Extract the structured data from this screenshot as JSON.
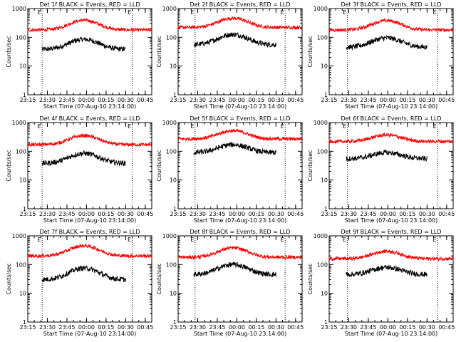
{
  "chart_data": [
    {
      "type": "line",
      "title": "Det 1f BLACK = Events, RED = LLD",
      "xlabel": "Start Time (07-Aug-10 23:14:00)",
      "ylabel": "Counts/sec",
      "y_scale": "log",
      "ylim": [
        1,
        1000
      ],
      "xlim": [
        "23:15",
        "00:50"
      ],
      "x_ticks": [
        "23:15",
        "23:30",
        "23:45",
        "00:00",
        "00:15",
        "00:30",
        "00:45"
      ],
      "y_ticks": [
        "1",
        "10",
        "100",
        "1000"
      ],
      "markers": [
        {
          "label": "E",
          "x": "23:26"
        },
        {
          "label": "E",
          "x": "00:35"
        }
      ],
      "series": [
        {
          "name": "Events",
          "color": "#000000",
          "x_start": "23:26",
          "x_end": "00:30",
          "base": 38,
          "peak": 85,
          "peak_x": "23:58",
          "width_min": 14
        },
        {
          "name": "LLD",
          "color": "#ff0000",
          "x_start": "23:15",
          "x_end": "00:50",
          "base": 180,
          "peak": 390,
          "peak_x": "23:58",
          "width_min": 14
        }
      ]
    },
    {
      "type": "line",
      "title": "Det 2f BLACK = Events, RED = LLD",
      "xlabel": "Start Time (07-Aug-10 23:14:00)",
      "ylabel": "Counts/sec",
      "y_scale": "log",
      "ylim": [
        1,
        1000
      ],
      "xlim": [
        "23:15",
        "00:50"
      ],
      "x_ticks": [
        "23:15",
        "23:30",
        "23:45",
        "00:00",
        "00:15",
        "00:30",
        "00:45"
      ],
      "y_ticks": [
        "1",
        "10",
        "100",
        "1000"
      ],
      "markers": [
        {
          "label": "E",
          "x": "23:28"
        },
        {
          "label": "E",
          "x": "00:37"
        }
      ],
      "series": [
        {
          "name": "Events",
          "color": "#000000",
          "x_start": "23:27",
          "x_end": "00:30",
          "base": 55,
          "peak": 125,
          "peak_x": "23:57",
          "width_min": 14
        },
        {
          "name": "LLD",
          "color": "#ff0000",
          "x_start": "23:15",
          "x_end": "00:50",
          "base": 220,
          "peak": 460,
          "peak_x": "23:57",
          "width_min": 14
        }
      ]
    },
    {
      "type": "line",
      "title": "Det 3f BLACK = Events, RED = LLD",
      "xlabel": "Start Time (07-Aug-10 23:14:00)",
      "ylabel": "Counts/sec",
      "y_scale": "log",
      "ylim": [
        1,
        1000
      ],
      "xlim": [
        "23:15",
        "00:50"
      ],
      "x_ticks": [
        "23:15",
        "23:30",
        "23:45",
        "00:00",
        "00:15",
        "00:30",
        "00:45"
      ],
      "y_ticks": [
        "1",
        "10",
        "100",
        "1000"
      ],
      "markers": [
        {
          "label": "E",
          "x": "23:29"
        },
        {
          "label": "E",
          "x": "00:38"
        }
      ],
      "series": [
        {
          "name": "Events",
          "color": "#000000",
          "x_start": "23:28",
          "x_end": "00:30",
          "base": 45,
          "peak": 95,
          "peak_x": "23:59",
          "width_min": 14
        },
        {
          "name": "LLD",
          "color": "#ff0000",
          "x_start": "23:15",
          "x_end": "00:50",
          "base": 180,
          "peak": 380,
          "peak_x": "23:59",
          "width_min": 14
        }
      ]
    },
    {
      "type": "line",
      "title": "Det 4f BLACK = Events, RED = LLD",
      "xlabel": "Start Time (07-Aug-10 23:14:00)",
      "ylabel": "Counts/sec",
      "y_scale": "log",
      "ylim": [
        1,
        1000
      ],
      "xlim": [
        "23:15",
        "00:50"
      ],
      "x_ticks": [
        "23:15",
        "23:30",
        "23:45",
        "00:00",
        "00:15",
        "00:30",
        "00:45"
      ],
      "y_ticks": [
        "1",
        "10",
        "100",
        "1000"
      ],
      "markers": [
        {
          "label": "E",
          "x": "23:26"
        },
        {
          "label": "E",
          "x": "00:35"
        }
      ],
      "series": [
        {
          "name": "Events",
          "color": "#000000",
          "x_start": "23:26",
          "x_end": "00:30",
          "base": 38,
          "peak": 85,
          "peak_x": "23:58",
          "width_min": 14
        },
        {
          "name": "LLD",
          "color": "#ff0000",
          "x_start": "23:15",
          "x_end": "00:50",
          "base": 170,
          "peak": 350,
          "peak_x": "23:58",
          "width_min": 14
        }
      ]
    },
    {
      "type": "line",
      "title": "Det 5f BLACK = Events, RED = LLD",
      "xlabel": "Start Time (07-Aug-10 23:14:00)",
      "ylabel": "Counts/sec",
      "y_scale": "log",
      "ylim": [
        1,
        1000
      ],
      "xlim": [
        "23:15",
        "00:50"
      ],
      "x_ticks": [
        "23:15",
        "23:30",
        "23:45",
        "00:00",
        "00:15",
        "00:30",
        "00:45"
      ],
      "y_ticks": [
        "1",
        "10",
        "100",
        "1000"
      ],
      "markers": [
        {
          "label": "E",
          "x": "23:28"
        },
        {
          "label": "E",
          "x": "00:37"
        }
      ],
      "series": [
        {
          "name": "Events",
          "color": "#000000",
          "x_start": "23:27",
          "x_end": "00:30",
          "base": 90,
          "peak": 170,
          "peak_x": "23:57",
          "width_min": 14
        },
        {
          "name": "LLD",
          "color": "#ff0000",
          "x_start": "23:15",
          "x_end": "00:50",
          "base": 270,
          "peak": 520,
          "peak_x": "23:57",
          "width_min": 14
        }
      ]
    },
    {
      "type": "line",
      "title": "Det 6f BLACK = Events, RED = LLD",
      "xlabel": "Start Time (07-Aug-10 23:14:00)",
      "ylabel": "Counts/sec",
      "y_scale": "log",
      "ylim": [
        1,
        1000
      ],
      "xlim": [
        "23:15",
        "00:50"
      ],
      "x_ticks": [
        "23:15",
        "23:30",
        "23:45",
        "00:00",
        "00:15",
        "00:30",
        "00:45"
      ],
      "y_ticks": [
        "1",
        "10",
        "100",
        "1000"
      ],
      "markers": [
        {
          "label": "E",
          "x": "23:29"
        },
        {
          "label": "E",
          "x": "00:38"
        }
      ],
      "series": [
        {
          "name": "Events",
          "color": "#000000",
          "x_start": "23:28",
          "x_end": "00:30",
          "base": 55,
          "peak": 90,
          "peak_x": "23:59",
          "width_min": 14
        },
        {
          "name": "LLD",
          "color": "#ff0000",
          "x_start": "23:15",
          "x_end": "00:50",
          "base": 220,
          "peak": 370,
          "peak_x": "23:59",
          "width_min": 14
        }
      ]
    },
    {
      "type": "line",
      "title": "Det 7f BLACK = Events, RED = LLD",
      "xlabel": "Start Time (07-Aug-10 23:14:00)",
      "ylabel": "Counts/sec",
      "y_scale": "log",
      "ylim": [
        1,
        1000
      ],
      "xlim": [
        "23:15",
        "00:50"
      ],
      "x_ticks": [
        "23:15",
        "23:30",
        "23:45",
        "00:00",
        "00:15",
        "00:30",
        "00:45"
      ],
      "y_ticks": [
        "1",
        "10",
        "100",
        "1000"
      ],
      "markers": [
        {
          "label": "E",
          "x": "23:26"
        },
        {
          "label": "E",
          "x": "00:35"
        }
      ],
      "series": [
        {
          "name": "Events",
          "color": "#000000",
          "x_start": "23:26",
          "x_end": "00:30",
          "base": 30,
          "peak": 75,
          "peak_x": "23:58",
          "width_min": 14
        },
        {
          "name": "LLD",
          "color": "#ff0000",
          "x_start": "23:15",
          "x_end": "00:50",
          "base": 200,
          "peak": 450,
          "peak_x": "23:58",
          "width_min": 14
        }
      ]
    },
    {
      "type": "line",
      "title": "Det 8f BLACK = Events, RED = LLD",
      "xlabel": "Start Time (07-Aug-10 23:14:00)",
      "ylabel": "Counts/sec",
      "y_scale": "log",
      "ylim": [
        1,
        1000
      ],
      "xlim": [
        "23:15",
        "00:50"
      ],
      "x_ticks": [
        "23:15",
        "23:30",
        "23:45",
        "00:00",
        "00:15",
        "00:30",
        "00:45"
      ],
      "y_ticks": [
        "1",
        "10",
        "100",
        "1000"
      ],
      "markers": [
        {
          "label": "E",
          "x": "23:28"
        },
        {
          "label": "E",
          "x": "00:37"
        }
      ],
      "series": [
        {
          "name": "Events",
          "color": "#000000",
          "x_start": "23:27",
          "x_end": "00:30",
          "base": 45,
          "peak": 100,
          "peak_x": "23:57",
          "width_min": 14
        },
        {
          "name": "LLD",
          "color": "#ff0000",
          "x_start": "23:15",
          "x_end": "00:50",
          "base": 180,
          "peak": 380,
          "peak_x": "23:57",
          "width_min": 14
        }
      ]
    },
    {
      "type": "line",
      "title": "Det 9f BLACK = Events, RED = LLD",
      "xlabel": "Start Time (07-Aug-10 23:14:00)",
      "ylabel": "Counts/sec",
      "y_scale": "log",
      "ylim": [
        1,
        1000
      ],
      "xlim": [
        "23:15",
        "00:50"
      ],
      "x_ticks": [
        "23:15",
        "23:30",
        "23:45",
        "00:00",
        "00:15",
        "00:30",
        "00:45"
      ],
      "y_ticks": [
        "1",
        "10",
        "100",
        "1000"
      ],
      "markers": [
        {
          "label": "E",
          "x": "23:29"
        },
        {
          "label": "E",
          "x": "00:38"
        }
      ],
      "series": [
        {
          "name": "Events",
          "color": "#000000",
          "x_start": "23:28",
          "x_end": "00:30",
          "base": 45,
          "peak": 80,
          "peak_x": "23:59",
          "width_min": 14
        },
        {
          "name": "LLD",
          "color": "#ff0000",
          "x_start": "23:15",
          "x_end": "00:50",
          "base": 160,
          "peak": 290,
          "peak_x": "23:59",
          "width_min": 14
        }
      ]
    }
  ]
}
